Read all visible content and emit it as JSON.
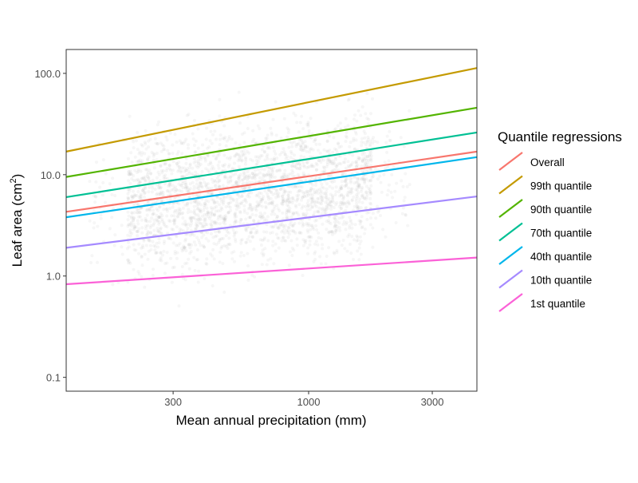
{
  "chart_data": {
    "type": "line",
    "title": "",
    "xlabel": "Mean annual precipitation (mm)",
    "ylabel_main": "Leaf area (cm",
    "ylabel_sup": "2",
    "ylabel_close": ")",
    "x_scale": "log10",
    "y_scale": "log10",
    "xlim": [
      116,
      4460
    ],
    "ylim": [
      0.073,
      172
    ],
    "x_ticks": [
      {
        "value": 300,
        "label": "300"
      },
      {
        "value": 1000,
        "label": "1000"
      },
      {
        "value": 3000,
        "label": "3000"
      }
    ],
    "y_ticks": [
      {
        "value": 0.1,
        "label": "0.1"
      },
      {
        "value": 1,
        "label": "1.0"
      },
      {
        "value": 10,
        "label": "10.0"
      },
      {
        "value": 100,
        "label": "100.0"
      }
    ],
    "grid": false,
    "legend": {
      "title": "Quantile regressions",
      "placement": "right"
    },
    "background_points": {
      "description_color": "#bdbdbd",
      "x_range": [
        150,
        2500
      ],
      "y_range": [
        0.1,
        100
      ]
    },
    "series": [
      {
        "name": "Overall",
        "color": "#F8766D",
        "x": [
          116,
          4460
        ],
        "y": [
          4.3,
          16.9
        ]
      },
      {
        "name": "99th quantile",
        "color": "#C49A00",
        "x": [
          116,
          4460
        ],
        "y": [
          16.9,
          113
        ]
      },
      {
        "name": "90th quantile",
        "color": "#53B400",
        "x": [
          116,
          4460
        ],
        "y": [
          9.5,
          45.8
        ]
      },
      {
        "name": "70th quantile",
        "color": "#00C094",
        "x": [
          116,
          4460
        ],
        "y": [
          6.0,
          26.1
        ]
      },
      {
        "name": "40th quantile",
        "color": "#00B6EB",
        "x": [
          116,
          4460
        ],
        "y": [
          3.8,
          14.9
        ]
      },
      {
        "name": "10th quantile",
        "color": "#A58AFF",
        "x": [
          116,
          4460
        ],
        "y": [
          1.9,
          6.1
        ]
      },
      {
        "name": "1st quantile",
        "color": "#FB61D7",
        "x": [
          116,
          4460
        ],
        "y": [
          0.83,
          1.52
        ]
      }
    ]
  }
}
